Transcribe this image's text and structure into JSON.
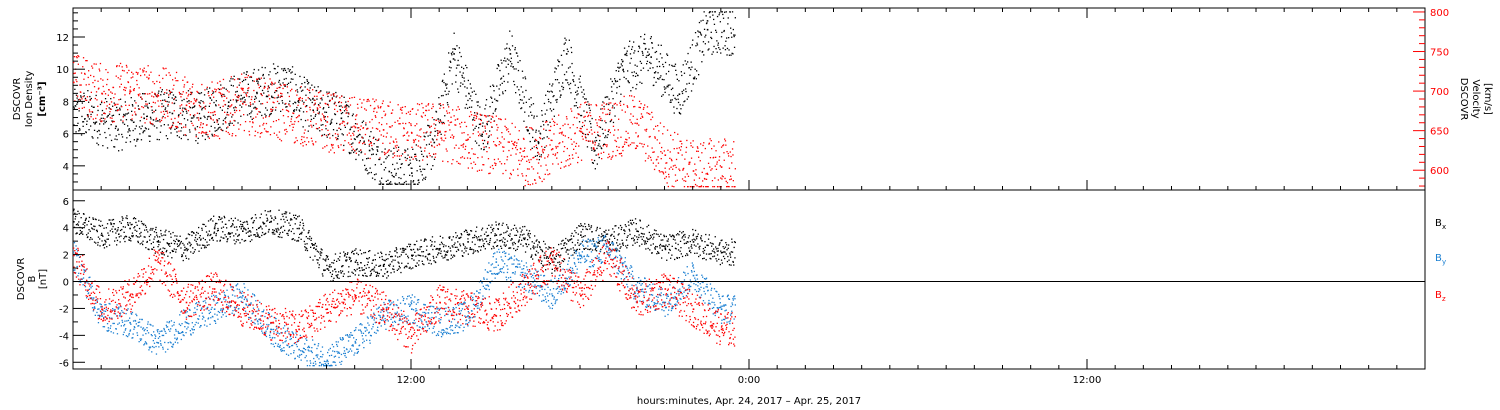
{
  "chart_data": [
    {
      "type": "scatter",
      "panel": "top",
      "ylabel_left_lines": [
        "DSCOVR",
        "Ion Density",
        "[cm⁻³]"
      ],
      "ylabel_right_lines": [
        "DSCOVR",
        "Velocity",
        "[km/s]"
      ],
      "xlim_hours": [
        -12,
        36
      ],
      "ylim_left": [
        2.5,
        13.8
      ],
      "ylim_right": [
        575,
        805
      ],
      "yticks_left": [
        "4",
        "6",
        "8",
        "10",
        "12"
      ],
      "yticks_left_values": [
        4,
        6,
        8,
        10,
        12
      ],
      "yticks_right": [
        "600",
        "650",
        "700",
        "750",
        "800"
      ],
      "yticks_right_values": [
        600,
        650,
        700,
        750,
        800
      ],
      "series": [
        {
          "color": "#000000",
          "axis": "left",
          "x_hours": [
            -11.5,
            -10.5,
            -9.5,
            -8.5,
            -7.5,
            -6.5,
            -5.5,
            -4.5,
            -3.5,
            -2.5,
            -1.5,
            -0.8,
            0,
            0.8,
            1.5,
            2.5,
            3.5,
            4.5,
            5.5,
            6.5,
            7.5,
            8.5,
            9.5,
            10.5
          ],
          "values": [
            7.2,
            6.5,
            7.0,
            7.3,
            7.0,
            8.0,
            8.6,
            9.0,
            7.5,
            7.0,
            5.0,
            3.7,
            3.6,
            5.5,
            11.0,
            6.0,
            11.0,
            5.5,
            11.0,
            5.0,
            10.0,
            10.8,
            8.5,
            12.5
          ]
        },
        {
          "color": "#ff0000",
          "axis": "right",
          "x_hours": [
            -12,
            -11,
            -10,
            -9,
            -8,
            -7,
            -6,
            -5,
            -4,
            -3,
            -2,
            -1,
            0,
            1,
            2,
            3,
            4,
            5,
            6,
            7,
            8,
            9,
            10,
            11
          ],
          "values": [
            712,
            698,
            700,
            695,
            683,
            675,
            685,
            678,
            670,
            662,
            655,
            652,
            648,
            650,
            640,
            632,
            618,
            628,
            650,
            652,
            660,
            620,
            600,
            605
          ]
        }
      ]
    },
    {
      "type": "scatter",
      "panel": "bottom",
      "ylabel_lines": [
        "DSCOVR",
        "B",
        "[nT]"
      ],
      "xlim_hours": [
        -12,
        36
      ],
      "ylim": [
        -6.5,
        6.8
      ],
      "yticks": [
        "-6",
        "-4",
        "-2",
        "0",
        "2",
        "4",
        "6"
      ],
      "yticks_values": [
        -6,
        -4,
        -2,
        0,
        2,
        4,
        6
      ],
      "series": [
        {
          "name": "B",
          "subscript": "x",
          "color": "#000000",
          "x_hours": [
            -12,
            -11,
            -10,
            -9,
            -8,
            -7,
            -6,
            -5,
            -4,
            -3,
            -2,
            -1,
            0,
            1,
            2,
            3,
            4,
            5,
            6,
            7,
            8,
            9,
            10,
            11
          ],
          "values": [
            4.5,
            3.5,
            4.0,
            3.0,
            2.5,
            4.0,
            3.8,
            4.5,
            4.0,
            1.0,
            1.5,
            1.2,
            2.0,
            2.5,
            3.0,
            3.5,
            3.2,
            1.5,
            3.5,
            3.0,
            3.8,
            2.5,
            3.0,
            2.2
          ]
        },
        {
          "name": "B",
          "subscript": "y",
          "color": "#1b7fd1",
          "x_hours": [
            -12,
            -11,
            -10,
            -9,
            -8,
            -7,
            -6,
            -5,
            -4,
            -3,
            -2,
            -1,
            0,
            1,
            2,
            3,
            4,
            5,
            6,
            7,
            8,
            9,
            10,
            11
          ],
          "values": [
            2.0,
            -2.5,
            -3.0,
            -4.5,
            -3.0,
            -2.0,
            -1.0,
            -3.5,
            -5.0,
            -5.8,
            -4.5,
            -2.5,
            -2.0,
            -3.0,
            -2.5,
            1.5,
            0.5,
            -1.0,
            2.0,
            2.5,
            -0.5,
            -1.5,
            0.5,
            -2.0
          ]
        },
        {
          "name": "B",
          "subscript": "z",
          "color": "#ff0000",
          "x_hours": [
            -12,
            -11,
            -10,
            -9,
            -8,
            -7,
            -6,
            -5,
            -4,
            -3,
            -2,
            -1,
            0,
            1,
            2,
            3,
            4,
            5,
            6,
            7,
            8,
            9,
            10,
            11
          ],
          "values": [
            2.0,
            -2.0,
            -1.0,
            1.5,
            -1.5,
            -0.5,
            -2.0,
            -3.0,
            -3.5,
            -2.0,
            -1.0,
            -2.0,
            -4.0,
            -1.5,
            -2.0,
            -2.5,
            -0.5,
            1.5,
            -1.0,
            2.0,
            -1.5,
            -0.5,
            -2.0,
            -3.5
          ]
        }
      ]
    }
  ],
  "x_axis": {
    "tick_labels": [
      "12:00",
      "0:00",
      "12:00"
    ],
    "tick_values_hours": [
      0,
      12,
      24
    ],
    "xlabel": "hours:minutes, Apr. 24, 2017 – Apr. 25, 2017"
  }
}
